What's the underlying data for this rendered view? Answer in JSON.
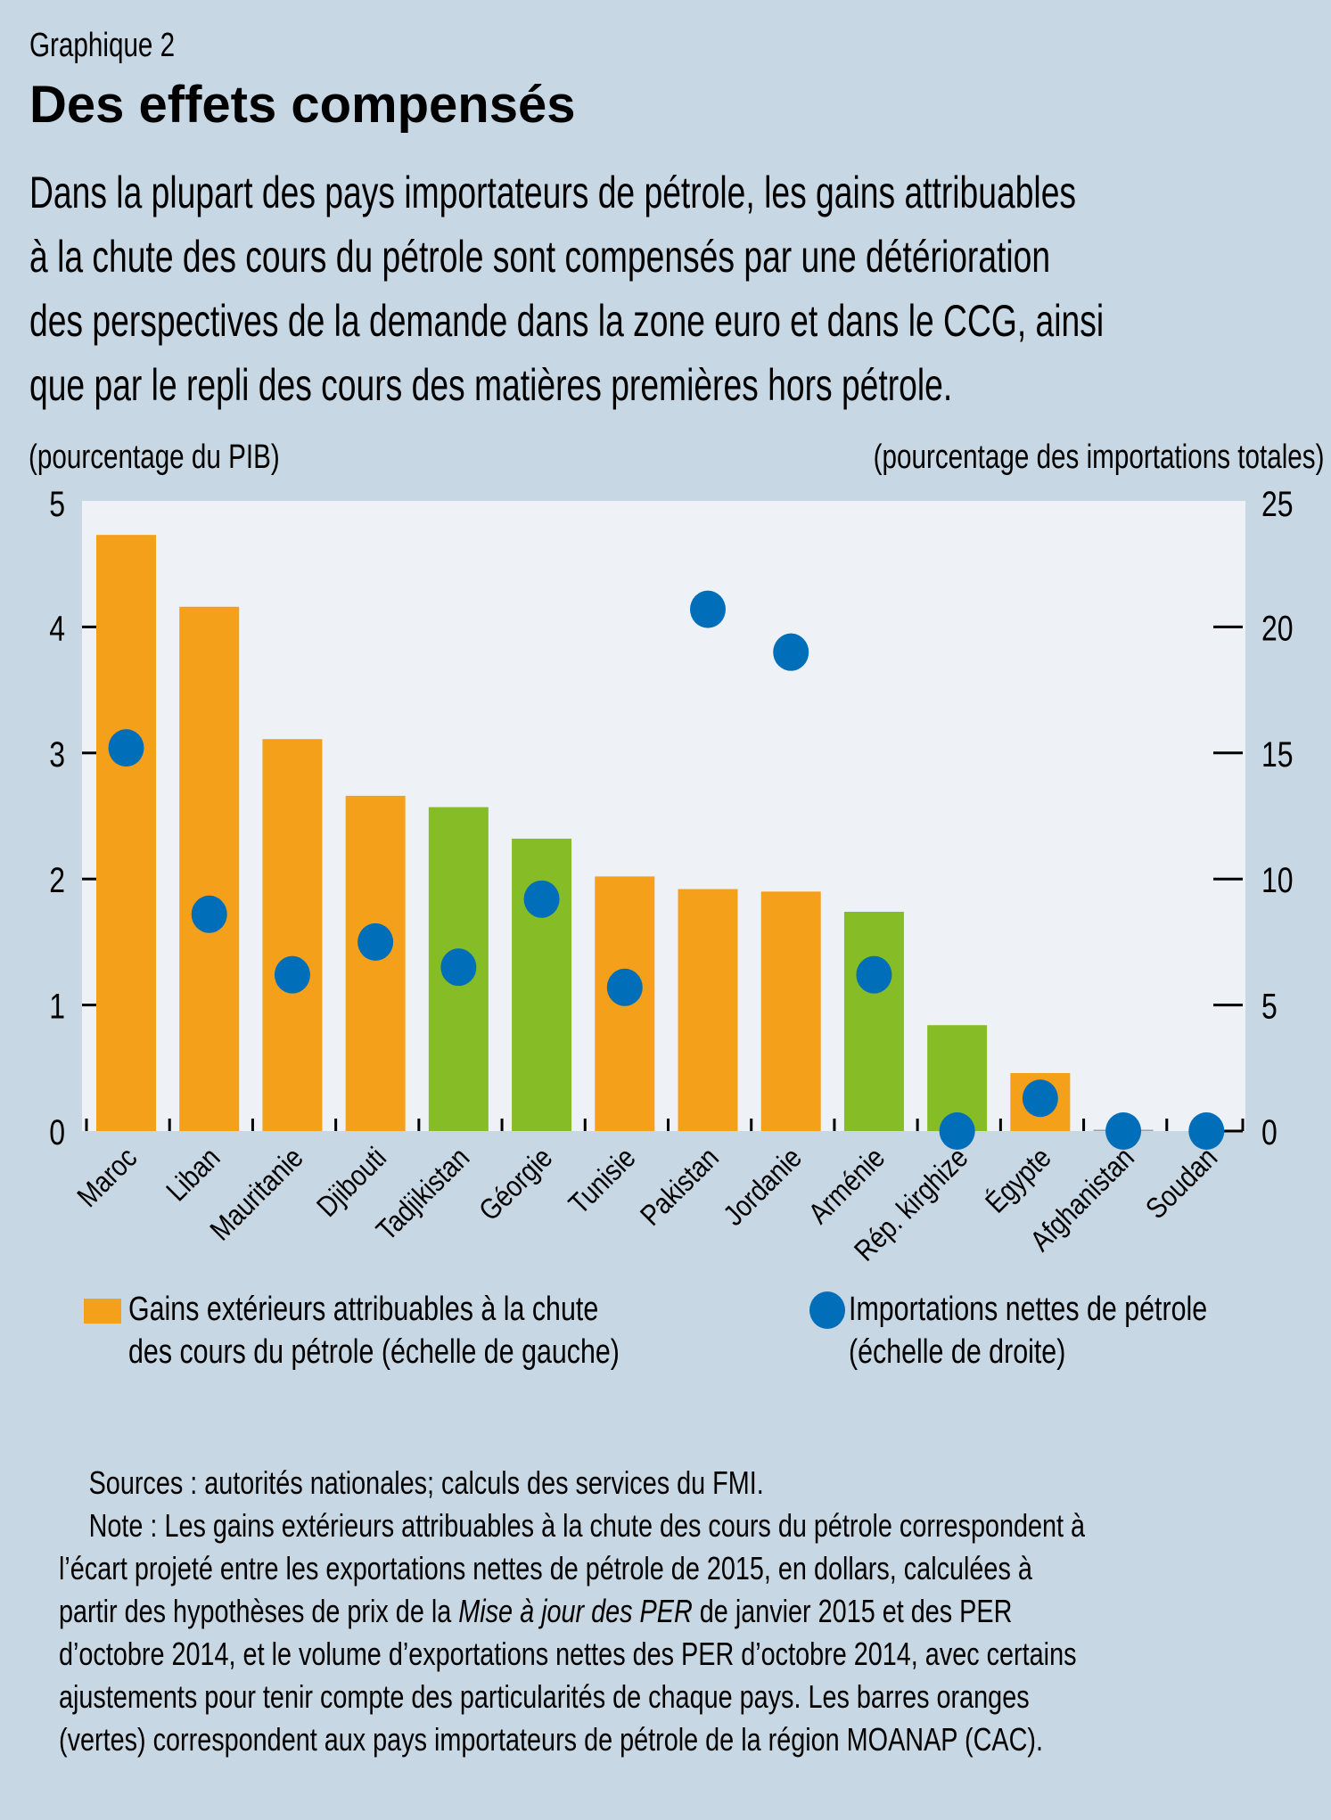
{
  "header": {
    "kicker": "Graphique 2",
    "title": "Des effets compensés",
    "subtitle_lines": [
      "Dans la plupart des pays importateurs de pétrole, les gains attribuables",
      "à la chute des cours du pétrole sont compensés par une détérioration",
      "des perspectives de la demande dans la zone euro et dans le CCG, ainsi",
      "que par le repli des cours des matières premières hors pétrole."
    ]
  },
  "colors": {
    "orange": "#F5A01A",
    "green": "#86BC25",
    "blue": "#006EB9",
    "plot_bg": "#EEF2F7",
    "page_bg": "#C7D7E4"
  },
  "chart_data": {
    "type": "bar",
    "title": "Des effets compensés",
    "xlabel": "",
    "ylabel": "(pourcentage du PIB)",
    "ylabel_right": "(pourcentage des importations totales)",
    "ylim": [
      0,
      5
    ],
    "ylim_right": [
      0,
      25
    ],
    "yticks": [
      0,
      1,
      2,
      3,
      4,
      5
    ],
    "yticks_right": [
      0,
      5,
      10,
      15,
      20,
      25
    ],
    "grid": false,
    "legend_position": "bottom",
    "categories": [
      "Maroc",
      "Liban",
      "Mauritanie",
      "Djibouti",
      "Tadjikistan",
      "Géorgie",
      "Tunisie",
      "Pakistan",
      "Jordanie",
      "Arménie",
      "Rép. kirghize",
      "Égypte",
      "Afghanistan",
      "Soudan"
    ],
    "bar_groups": [
      "MOANAP",
      "MOANAP",
      "MOANAP",
      "MOANAP",
      "CAC",
      "CAC",
      "MOANAP",
      "MOANAP",
      "MOANAP",
      "CAC",
      "CAC",
      "MOANAP",
      "MOANAP",
      "MOANAP"
    ],
    "series": [
      {
        "name": "Gains extérieurs attribuables à la chute des cours du pétrole (échelle de gauche)",
        "type": "bar",
        "axis": "left",
        "values": [
          4.73,
          4.16,
          3.11,
          2.66,
          2.57,
          2.32,
          2.02,
          1.92,
          1.9,
          1.74,
          0.84,
          0.46,
          0.01,
          0.0
        ]
      },
      {
        "name": "Importations nettes de pétrole (échelle de droite)",
        "type": "scatter",
        "axis": "right",
        "values": [
          15.2,
          8.6,
          6.2,
          7.5,
          6.5,
          9.2,
          5.7,
          20.7,
          19.0,
          6.2,
          0.0,
          1.3,
          0.0,
          0.0
        ]
      }
    ]
  },
  "legend": {
    "bars_lines": [
      "Gains extérieurs attribuables à la chute",
      "des cours du pétrole (échelle de gauche)"
    ],
    "dots_lines": [
      "Importations nettes de pétrole",
      "(échelle de droite)"
    ]
  },
  "notes": {
    "sources": "Sources : autorités nationales; calculs des services du FMI.",
    "note_line1": "Note : Les gains extérieurs attribuables à la chute des cours du pétrole correspondent à",
    "note_line2": "l’écart projeté entre les exportations nettes de pétrole de 2015, en dollars, calculées à",
    "note_line3_pre": "partir des hypothèses de prix de la ",
    "note_line3_em": "Mise à jour des PER",
    "note_line3_post": " de janvier 2015 et des PER",
    "note_line4": "d’octobre 2014, et le volume d’exportations nettes des PER d’octobre 2014, avec certains",
    "note_line5": "ajustements pour tenir compte des particularités de chaque pays. Les barres oranges",
    "note_line6": "(vertes) correspondent aux pays importateurs de pétrole de la région MOANAP (CAC)."
  }
}
